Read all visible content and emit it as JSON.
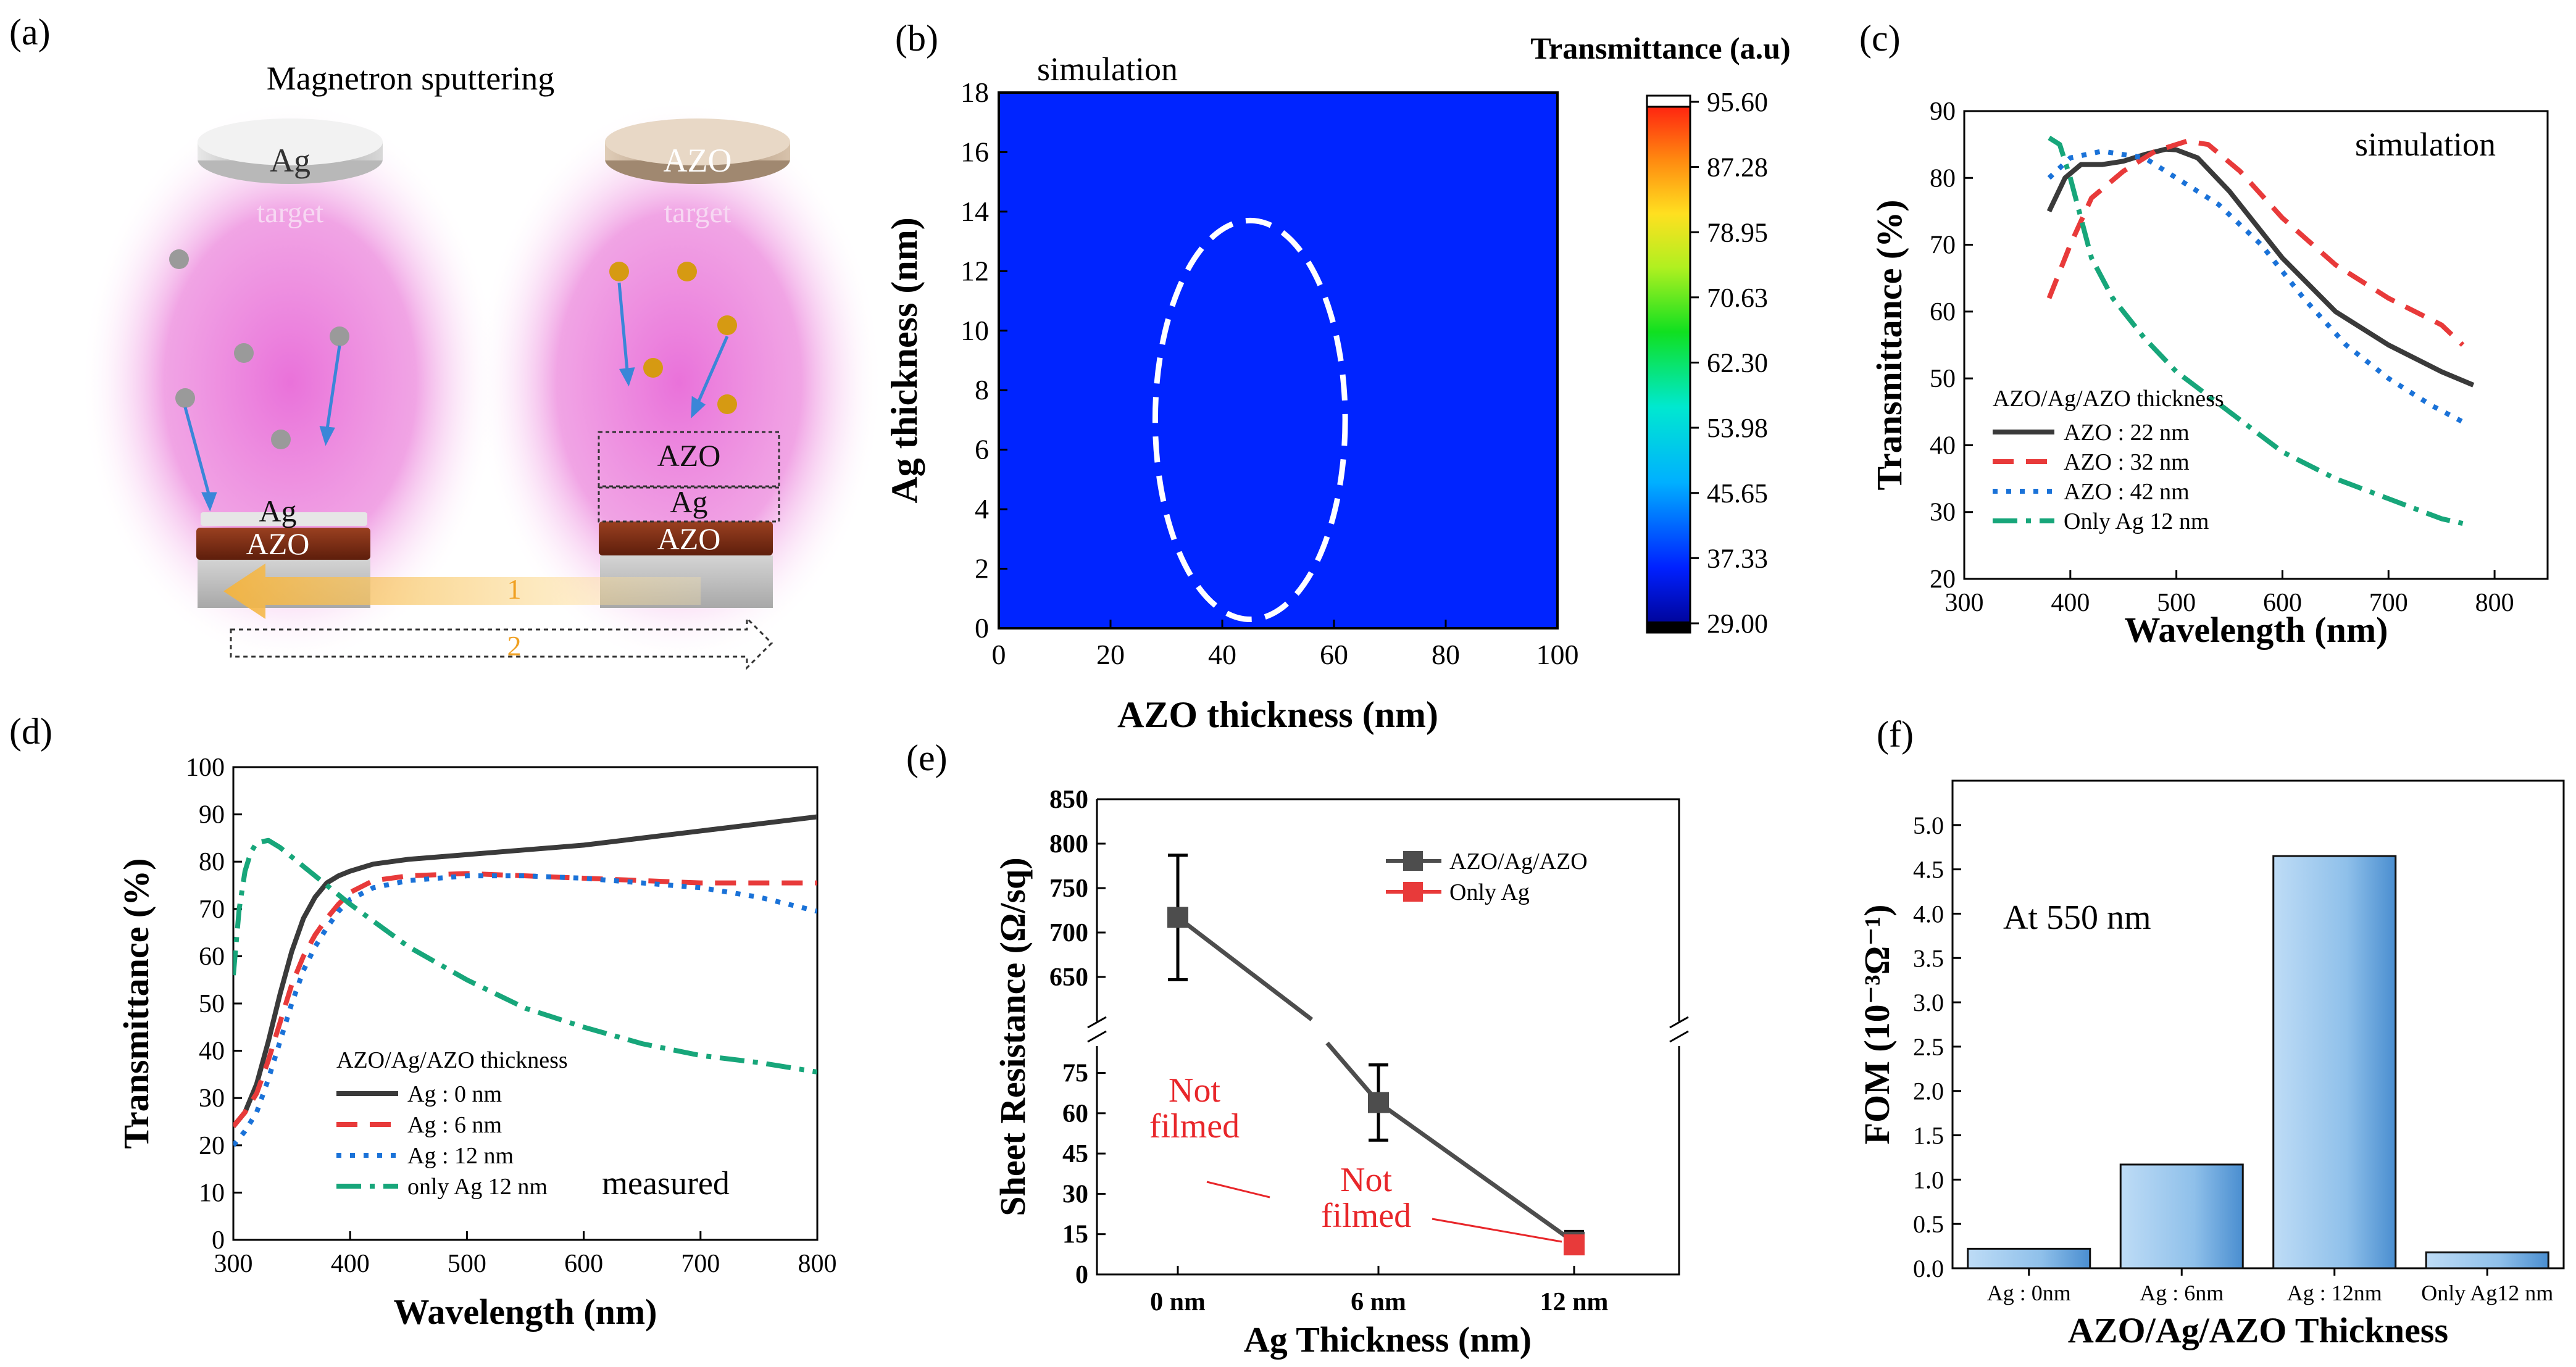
{
  "panels": {
    "a": {
      "label": "(a)",
      "title": "Magnetron sputtering",
      "target_ag": "Ag",
      "target_ag_sub": "target",
      "target_azo": "AZO",
      "target_azo_sub": "target",
      "left_stack_top": "Ag",
      "left_stack_bottom": "AZO",
      "right_stack_top": "AZO",
      "right_stack_mid": "Ag",
      "right_stack_bottom": "AZO",
      "step1": "1",
      "step2": "2",
      "colors": {
        "plasma": "#e86ad8",
        "ag_dot": "#9a9a9a",
        "azo_dot": "#d69a12",
        "arrow": "#3a86d8",
        "azo_layer": "#7a2a14"
      }
    },
    "b": {
      "label": "(b)"
    },
    "c": {
      "label": "(c)"
    },
    "d": {
      "label": "(d)"
    },
    "e": {
      "label": "(e)"
    },
    "f": {
      "label": "(f)"
    }
  },
  "chart_data": [
    {
      "id": "b",
      "type": "heatmap",
      "annotation": "simulation",
      "xlabel": "AZO thickness (nm)",
      "ylabel": "Ag thickness (nm)",
      "xlim": [
        0,
        100
      ],
      "ylim": [
        0,
        18
      ],
      "xticks": [
        "0",
        "20",
        "40",
        "60",
        "80",
        "100"
      ],
      "yticks": [
        "0",
        "2",
        "4",
        "6",
        "8",
        "10",
        "12",
        "14",
        "16",
        "18"
      ],
      "colorbar_title": "Transmittance (a.u)",
      "colorbar_ticks": [
        "95.60",
        "87.28",
        "78.95",
        "70.63",
        "62.30",
        "53.98",
        "45.65",
        "37.33",
        "29.00"
      ],
      "zlim": [
        29.0,
        95.6
      ],
      "highlight": {
        "center_x": 45,
        "center_y": 7,
        "radius_x": 17,
        "radius_y": 6.7
      },
      "contour_levels": [
        91,
        87.3,
        79,
        70.6,
        62.3,
        54,
        45.7,
        37.3
      ]
    },
    {
      "id": "c",
      "type": "line",
      "annotation": "simulation",
      "xlabel": "Wavelength (nm)",
      "ylabel": "Transmittance (%)",
      "xlim": [
        300,
        850
      ],
      "ylim": [
        20,
        90
      ],
      "xticks": [
        "300",
        "400",
        "500",
        "600",
        "700",
        "800"
      ],
      "yticks": [
        "20",
        "30",
        "40",
        "50",
        "60",
        "70",
        "80",
        "90"
      ],
      "legend_title": "AZO/Ag/AZO thickness",
      "series": [
        {
          "name": "AZO : 22 nm",
          "color": "#3a3a3a",
          "dash": "solid",
          "x": [
            380,
            395,
            410,
            430,
            450,
            470,
            490,
            500,
            520,
            550,
            600,
            650,
            700,
            750,
            780
          ],
          "y": [
            75,
            80,
            82,
            82,
            82.5,
            83.5,
            84.3,
            84.2,
            83,
            78,
            68,
            60,
            55,
            51,
            49
          ]
        },
        {
          "name": "AZO : 32 nm",
          "color": "#e83a3a",
          "dash": "dash",
          "x": [
            380,
            400,
            420,
            450,
            480,
            510,
            530,
            560,
            600,
            650,
            700,
            750,
            770
          ],
          "y": [
            62,
            70,
            77,
            81,
            84,
            85.5,
            85,
            81,
            74,
            67,
            62,
            58,
            55
          ]
        },
        {
          "name": "AZO : 42 nm",
          "color": "#1a72d8",
          "dash": "dot",
          "x": [
            380,
            400,
            430,
            470,
            500,
            540,
            580,
            620,
            660,
            700,
            740,
            770
          ],
          "y": [
            80,
            83,
            84,
            83,
            80,
            76,
            70,
            62,
            55,
            50,
            46,
            43.5
          ]
        },
        {
          "name": "Only Ag 12 nm",
          "color": "#17a67a",
          "dash": "dashdot",
          "x": [
            380,
            390,
            400,
            410,
            420,
            440,
            470,
            500,
            550,
            600,
            650,
            700,
            750,
            770
          ],
          "y": [
            86,
            85,
            80,
            74,
            68,
            62,
            56,
            51,
            45,
            39,
            35,
            32,
            29,
            28.3
          ]
        }
      ]
    },
    {
      "id": "d",
      "type": "line",
      "annotation": "measured",
      "xlabel": "Wavelength (nm)",
      "ylabel": "Transmittance (%)",
      "xlim": [
        300,
        800
      ],
      "ylim": [
        0,
        100
      ],
      "xticks": [
        "300",
        "400",
        "500",
        "600",
        "700",
        "800"
      ],
      "yticks": [
        "0",
        "10",
        "20",
        "30",
        "40",
        "50",
        "60",
        "70",
        "80",
        "90",
        "100"
      ],
      "legend_title": "AZO/Ag/AZO thickness",
      "series": [
        {
          "name": "Ag : 0 nm",
          "color": "#3a3a3a",
          "dash": "solid",
          "x": [
            300,
            310,
            320,
            330,
            340,
            350,
            360,
            370,
            380,
            390,
            400,
            420,
            450,
            500,
            550,
            600,
            650,
            700,
            750,
            800
          ],
          "y": [
            24,
            27,
            33,
            42,
            52,
            61,
            68,
            72.5,
            75.5,
            77,
            78,
            79.5,
            80.5,
            81.5,
            82.5,
            83.5,
            85,
            86.5,
            88,
            89.5
          ]
        },
        {
          "name": "Ag : 6 nm",
          "color": "#e83a3a",
          "dash": "dash",
          "x": [
            300,
            310,
            320,
            330,
            340,
            350,
            360,
            370,
            380,
            390,
            400,
            420,
            450,
            500,
            550,
            600,
            650,
            700,
            750,
            800
          ],
          "y": [
            24,
            27,
            31,
            38,
            46,
            54,
            60,
            64.5,
            68,
            71,
            73.5,
            76,
            77,
            77.5,
            77,
            76.5,
            76,
            75.5,
            75.5,
            75.5
          ]
        },
        {
          "name": "Ag : 12 nm",
          "color": "#1a72d8",
          "dash": "dot",
          "x": [
            300,
            310,
            320,
            330,
            340,
            350,
            360,
            370,
            380,
            390,
            400,
            420,
            450,
            500,
            550,
            600,
            650,
            700,
            750,
            800
          ],
          "y": [
            20,
            23,
            27,
            34,
            42,
            50,
            57,
            62,
            66,
            69.5,
            72,
            74.5,
            76,
            77,
            77,
            76.5,
            75.5,
            74.5,
            72.5,
            69.5
          ]
        },
        {
          "name": "only Ag 12 nm",
          "color": "#17a67a",
          "dash": "dashdot",
          "x": [
            300,
            305,
            310,
            315,
            320,
            330,
            340,
            360,
            380,
            400,
            450,
            500,
            550,
            600,
            650,
            700,
            750,
            800
          ],
          "y": [
            56,
            70,
            78,
            82,
            84,
            84.5,
            83,
            79,
            75,
            71,
            62,
            55,
            49,
            45,
            41.5,
            39,
            37.5,
            35.5
          ]
        }
      ]
    },
    {
      "id": "e",
      "type": "line",
      "xlabel": "Ag Thickness (nm)",
      "ylabel": "Sheet Resistance (Ω/sq)",
      "categories": [
        "0 nm",
        "6 nm",
        "12 nm"
      ],
      "yticks_upper": [
        "650",
        "700",
        "750",
        "800",
        "850"
      ],
      "yticks_lower": [
        "0",
        "15",
        "30",
        "45",
        "60",
        "75"
      ],
      "ylim_upper": [
        600,
        850
      ],
      "ylim_lower": [
        0,
        85
      ],
      "series": [
        {
          "name": "AZO/Ag/AZO",
          "color": "#4d4d4d",
          "values": [
            717,
            64,
            12
          ],
          "errors": [
            70,
            14,
            4
          ]
        },
        {
          "name": "Only Ag",
          "color": "#e83a3a",
          "values": [
            null,
            null,
            11
          ],
          "errors": [
            null,
            null,
            null
          ]
        }
      ],
      "annotations": [
        {
          "line1": "Not",
          "line2": "filmed",
          "category": "0 nm"
        },
        {
          "line1": "Not",
          "line2": "filmed",
          "category": "6 nm"
        }
      ],
      "annotation_color": "#e8262a"
    },
    {
      "id": "f",
      "type": "bar",
      "annotation": "At 550 nm",
      "xlabel": "AZO/Ag/AZO Thickness",
      "ylabel": "FOM (10⁻³Ω⁻¹)",
      "categories": [
        "Ag : 0nm",
        "Ag : 6nm",
        "Ag : 12nm",
        "Only  Ag12 nm"
      ],
      "values": [
        0.22,
        1.17,
        4.65,
        0.18
      ],
      "ylim": [
        0,
        5.5
      ],
      "yticks": [
        "0.0",
        "0.5",
        "1.0",
        "1.5",
        "2.0",
        "2.5",
        "3.0",
        "3.5",
        "4.0",
        "4.5",
        "5.0"
      ],
      "bar_color": "#8fc0ea"
    }
  ]
}
